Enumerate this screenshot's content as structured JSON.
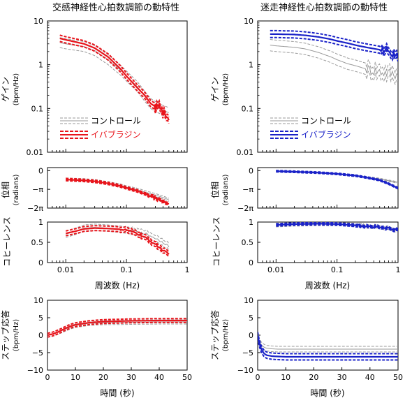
{
  "figure": {
    "left_title": "交感神経性心拍数調節の動特性",
    "right_title": "迷走神経性心拍数調節の動特性"
  },
  "colors": {
    "control": "#9a9a9a",
    "left_accent": "#e8141b",
    "right_accent": "#1a22c8"
  },
  "shared_labels": {
    "gain_ylabel_jp": "ゲイン",
    "gain_ylabel_unit": "(bpm/Hz)",
    "phase_ylabel_jp": "位相",
    "phase_ylabel_unit": "(radians)",
    "coh_ylabel_jp": "コヒーレンス",
    "freq_xlabel": "周波数 (Hz)",
    "step_ylabel_jp": "ステップ応答",
    "step_ylabel_unit": "(bpm/Hz)",
    "step_xlabel": "時間 (秒)"
  },
  "legend": {
    "control_label": "コントロール",
    "drug_label": "イバブラジン"
  },
  "chart_data": [
    {
      "id": "left-gain",
      "type": "line",
      "title": "",
      "xlabel": "",
      "ylabel": "ゲイン (bpm/Hz)",
      "xscale": "log",
      "yscale": "log",
      "xlim": [
        0.005,
        1
      ],
      "ylim": [
        0.01,
        10
      ],
      "xticks": [],
      "yticks": [
        0.01,
        0.1,
        1,
        10
      ],
      "ytick_labels": [
        "0.01",
        "0.1",
        "1",
        "10"
      ],
      "legend": "inside lower-left",
      "series": [
        {
          "name": "コントロール",
          "style": "control",
          "x": [
            0.008,
            0.01,
            0.02,
            0.03,
            0.05,
            0.08,
            0.1,
            0.15,
            0.2,
            0.25,
            0.3,
            0.35,
            0.4,
            0.45,
            0.5
          ],
          "y": [
            3.2,
            3.0,
            2.6,
            2.1,
            1.3,
            0.75,
            0.55,
            0.32,
            0.19,
            0.13,
            0.11,
            0.1,
            0.09,
            0.085,
            0.08
          ],
          "band": 1.3
        },
        {
          "name": "イバブラジン",
          "style": "drug",
          "x": [
            0.008,
            0.01,
            0.02,
            0.03,
            0.05,
            0.08,
            0.1,
            0.15,
            0.2,
            0.25,
            0.3,
            0.35,
            0.4,
            0.45,
            0.5
          ],
          "y": [
            4.0,
            3.7,
            3.0,
            2.4,
            1.5,
            0.8,
            0.55,
            0.3,
            0.2,
            0.13,
            0.11,
            0.1,
            0.09,
            0.08,
            0.07
          ],
          "band": 1.18,
          "noise_from": 0.3
        }
      ]
    },
    {
      "id": "right-gain",
      "type": "line",
      "title": "",
      "xlabel": "",
      "ylabel": "ゲイン (bpm/Hz)",
      "xscale": "log",
      "yscale": "log",
      "xlim": [
        0.005,
        1
      ],
      "ylim": [
        0.01,
        10
      ],
      "xticks": [],
      "yticks": [
        0.01,
        0.1,
        1,
        10
      ],
      "ytick_labels": [
        "0.01",
        "0.1",
        "1",
        "10"
      ],
      "legend": "inside lower-left",
      "series": [
        {
          "name": "コントロール",
          "style": "control",
          "x": [
            0.008,
            0.01,
            0.02,
            0.03,
            0.05,
            0.08,
            0.1,
            0.15,
            0.2,
            0.3,
            0.5,
            0.7,
            1.0
          ],
          "y": [
            2.8,
            2.7,
            2.5,
            2.3,
            1.9,
            1.5,
            1.3,
            1.05,
            0.95,
            0.8,
            0.7,
            0.65,
            0.6
          ],
          "band": 1.35,
          "noise_from": 0.3
        },
        {
          "name": "イバブラジン",
          "style": "drug",
          "x": [
            0.008,
            0.01,
            0.02,
            0.03,
            0.05,
            0.08,
            0.1,
            0.15,
            0.2,
            0.3,
            0.5,
            0.7,
            1.0
          ],
          "y": [
            5.0,
            5.0,
            4.9,
            4.7,
            4.3,
            3.8,
            3.5,
            3.1,
            2.8,
            2.5,
            2.2,
            2.0,
            1.7
          ],
          "band": 1.2,
          "noise_from": 0.5
        }
      ]
    },
    {
      "id": "left-phase",
      "type": "line",
      "title": "",
      "xlabel": "",
      "ylabel": "位相 (radians)",
      "xscale": "log",
      "yscale": "linear",
      "xlim": [
        0.005,
        1
      ],
      "ylim": [
        -6.283,
        0.5
      ],
      "xticks": [],
      "yticks": [
        0,
        -3.1416,
        -6.2832
      ],
      "ytick_labels": [
        "0",
        "−π",
        "−2π"
      ],
      "series": [
        {
          "name": "コントロール",
          "style": "control",
          "x": [
            0.01,
            0.02,
            0.03,
            0.05,
            0.08,
            0.1,
            0.15,
            0.2,
            0.3,
            0.4,
            0.5
          ],
          "y": [
            -1.5,
            -1.6,
            -1.75,
            -2.1,
            -2.5,
            -2.8,
            -3.2,
            -3.6,
            -4.1,
            -4.5,
            -4.9
          ],
          "band": 0.25
        },
        {
          "name": "イバブラジン",
          "style": "drug",
          "x": [
            0.01,
            0.02,
            0.03,
            0.05,
            0.08,
            0.1,
            0.15,
            0.2,
            0.3,
            0.4,
            0.5
          ],
          "y": [
            -1.5,
            -1.65,
            -1.8,
            -2.15,
            -2.6,
            -2.9,
            -3.4,
            -3.9,
            -4.6,
            -5.2,
            -5.6
          ],
          "band": 0.2,
          "noise_from": 0.2
        }
      ]
    },
    {
      "id": "right-phase",
      "type": "line",
      "title": "",
      "xlabel": "",
      "ylabel": "位相 (radians)",
      "xscale": "log",
      "yscale": "linear",
      "xlim": [
        0.005,
        1
      ],
      "ylim": [
        -6.283,
        0.5
      ],
      "xticks": [],
      "yticks": [
        0,
        -3.1416,
        -6.2832
      ],
      "ytick_labels": [
        "0",
        "−π",
        "−2π"
      ],
      "series": [
        {
          "name": "コントロール",
          "style": "control",
          "x": [
            0.01,
            0.02,
            0.05,
            0.1,
            0.2,
            0.3,
            0.5,
            0.7,
            1.0
          ],
          "y": [
            -0.1,
            -0.2,
            -0.35,
            -0.55,
            -0.85,
            -1.1,
            -1.4,
            -1.7,
            -2.0
          ],
          "band": 0.12
        },
        {
          "name": "イバブラジン",
          "style": "drug",
          "x": [
            0.01,
            0.02,
            0.05,
            0.1,
            0.2,
            0.3,
            0.5,
            0.7,
            1.0
          ],
          "y": [
            -0.1,
            -0.2,
            -0.35,
            -0.55,
            -0.85,
            -1.15,
            -1.6,
            -2.2,
            -2.95
          ],
          "band": 0.12
        }
      ]
    },
    {
      "id": "left-coh",
      "type": "line",
      "title": "",
      "xlabel": "周波数 (Hz)",
      "ylabel": "コヒーレンス",
      "xscale": "log",
      "yscale": "linear",
      "xlim": [
        0.005,
        1
      ],
      "ylim": [
        0,
        1
      ],
      "xticks": [
        0.01,
        0.1,
        1
      ],
      "xtick_labels": [
        "0.01",
        "0.1",
        "1"
      ],
      "yticks": [
        0,
        0.5,
        1
      ],
      "ytick_labels": [
        "0",
        "0.5",
        "1"
      ],
      "series": [
        {
          "name": "コントロール",
          "style": "control",
          "x": [
            0.01,
            0.015,
            0.02,
            0.03,
            0.05,
            0.08,
            0.1,
            0.15,
            0.2,
            0.3,
            0.4,
            0.5
          ],
          "y": [
            0.7,
            0.78,
            0.85,
            0.87,
            0.85,
            0.82,
            0.8,
            0.75,
            0.72,
            0.6,
            0.5,
            0.4
          ],
          "band": 0.08,
          "noise_from": 0.1
        },
        {
          "name": "イバブラジン",
          "style": "drug",
          "x": [
            0.01,
            0.015,
            0.02,
            0.03,
            0.05,
            0.08,
            0.1,
            0.15,
            0.2,
            0.3,
            0.4,
            0.5
          ],
          "y": [
            0.72,
            0.78,
            0.83,
            0.85,
            0.84,
            0.82,
            0.8,
            0.72,
            0.62,
            0.45,
            0.3,
            0.2
          ],
          "band": 0.06,
          "noise_from": 0.08
        }
      ]
    },
    {
      "id": "right-coh",
      "type": "line",
      "title": "",
      "xlabel": "周波数 (Hz)",
      "ylabel": "コヒーレンス",
      "xscale": "log",
      "yscale": "linear",
      "xlim": [
        0.005,
        1
      ],
      "ylim": [
        0,
        1
      ],
      "xticks": [
        0.01,
        0.1,
        1
      ],
      "xtick_labels": [
        "0.01",
        "0.1",
        "1"
      ],
      "yticks": [
        0,
        0.5,
        1
      ],
      "ytick_labels": [
        "0",
        "0.5",
        "1"
      ],
      "series": [
        {
          "name": "コントロール",
          "style": "control",
          "x": [
            0.01,
            0.02,
            0.05,
            0.1,
            0.2,
            0.3,
            0.5,
            0.7,
            1.0
          ],
          "y": [
            0.92,
            0.94,
            0.95,
            0.95,
            0.93,
            0.9,
            0.88,
            0.85,
            0.78
          ],
          "band": 0.04,
          "noise_from": 0.2
        },
        {
          "name": "イバブラジン",
          "style": "drug",
          "x": [
            0.01,
            0.02,
            0.05,
            0.1,
            0.2,
            0.3,
            0.5,
            0.7,
            1.0
          ],
          "y": [
            0.93,
            0.95,
            0.96,
            0.95,
            0.92,
            0.9,
            0.87,
            0.84,
            0.8
          ],
          "band": 0.03,
          "noise_from": 0.2
        }
      ]
    },
    {
      "id": "left-step",
      "type": "line",
      "title": "",
      "xlabel": "時間 (秒)",
      "ylabel": "ステップ応答 (bpm/Hz)",
      "xscale": "linear",
      "yscale": "linear",
      "xlim": [
        0,
        50
      ],
      "ylim": [
        -10,
        10
      ],
      "xticks": [
        0,
        10,
        20,
        30,
        40,
        50
      ],
      "xtick_labels": [
        "0",
        "10",
        "20",
        "30",
        "40",
        "50"
      ],
      "yticks": [
        -10,
        -5,
        0,
        5,
        10
      ],
      "ytick_labels": [
        "−10",
        "−5",
        "0",
        "5",
        "10"
      ],
      "series": [
        {
          "name": "コントロール",
          "style": "control",
          "x": [
            0,
            2,
            4,
            6,
            8,
            10,
            15,
            20,
            30,
            40,
            50
          ],
          "y": [
            0,
            0.3,
            0.9,
            1.6,
            2.3,
            2.8,
            3.4,
            3.6,
            3.7,
            3.8,
            3.8
          ],
          "band": 0.6
        },
        {
          "name": "イバブラジン",
          "style": "drug",
          "x": [
            0,
            2,
            4,
            6,
            8,
            10,
            15,
            20,
            30,
            40,
            50
          ],
          "y": [
            0,
            0.35,
            1.0,
            1.8,
            2.5,
            3.0,
            3.6,
            3.9,
            4.1,
            4.2,
            4.2
          ],
          "band": 0.55
        }
      ]
    },
    {
      "id": "right-step",
      "type": "line",
      "title": "",
      "xlabel": "時間 (秒)",
      "ylabel": "ステップ応答 (bpm/Hz)",
      "xscale": "linear",
      "yscale": "linear",
      "xlim": [
        0,
        50
      ],
      "ylim": [
        -10,
        10
      ],
      "xticks": [
        0,
        10,
        20,
        30,
        40,
        50
      ],
      "xtick_labels": [
        "0",
        "10",
        "20",
        "30",
        "40",
        "50"
      ],
      "yticks": [
        -10,
        -5,
        0,
        5,
        10
      ],
      "ytick_labels": [
        "−10",
        "−5",
        "0",
        "5",
        "10"
      ],
      "series": [
        {
          "name": "コントロール",
          "style": "control",
          "x": [
            0,
            0.5,
            1,
            2,
            3,
            5,
            7,
            10,
            20,
            30,
            40,
            50
          ],
          "y": [
            0,
            -1.5,
            -2.5,
            -3.3,
            -3.7,
            -3.9,
            -4.0,
            -4.0,
            -4.0,
            -4.0,
            -4.0,
            -4.0
          ],
          "band": 0.8
        },
        {
          "name": "イバブラジン",
          "style": "drug",
          "x": [
            0,
            0.5,
            1,
            2,
            3,
            5,
            7,
            10,
            20,
            30,
            40,
            50
          ],
          "y": [
            0,
            -2.0,
            -3.5,
            -5.0,
            -5.7,
            -6.0,
            -6.1,
            -6.2,
            -6.2,
            -6.2,
            -6.2,
            -6.2
          ],
          "band": 0.9
        }
      ]
    }
  ]
}
